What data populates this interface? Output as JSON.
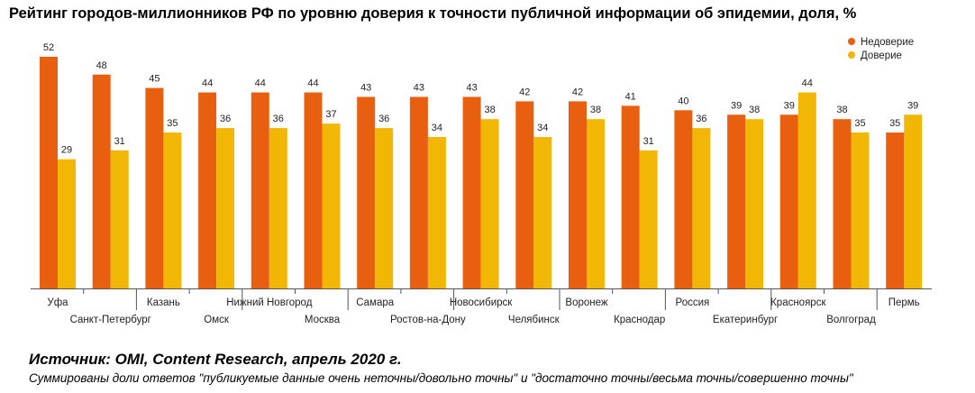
{
  "chart_data": {
    "type": "bar",
    "title": "Рейтинг городов-миллионников РФ по уровню доверия к точности публичной информации об эпидемии, доля, %",
    "categories": [
      "Уфа",
      "Санкт-Петербург",
      "Казань",
      "Омск",
      "Нижний Новгород",
      "Москва",
      "Самара",
      "Ростов-на-Дону",
      "Новосибирск",
      "Челябинск",
      "Воронеж",
      "Краснодар",
      "Россия",
      "Екатеринбург",
      "Красноярск",
      "Волгоград",
      "Пермь"
    ],
    "series": [
      {
        "name": "Недоверие",
        "color": "#E8600F",
        "values": [
          52,
          48,
          45,
          44,
          44,
          44,
          43,
          43,
          43,
          42,
          42,
          41,
          40,
          39,
          39,
          38,
          35
        ]
      },
      {
        "name": "Доверие",
        "color": "#F2B705",
        "values": [
          29,
          31,
          35,
          36,
          36,
          37,
          36,
          34,
          38,
          34,
          38,
          31,
          36,
          38,
          44,
          35,
          39
        ]
      }
    ],
    "ylim": [
      0,
      52
    ],
    "grid": false,
    "legend_position": "top-right"
  },
  "footer": {
    "source": "Источник: OMI, Content Research, апрель 2020 г.",
    "note": "Суммированы доли ответов \"публикуемые данные очень неточны/довольно точны\" и \"достаточно точны/весьма точны/совершенно точны\""
  }
}
